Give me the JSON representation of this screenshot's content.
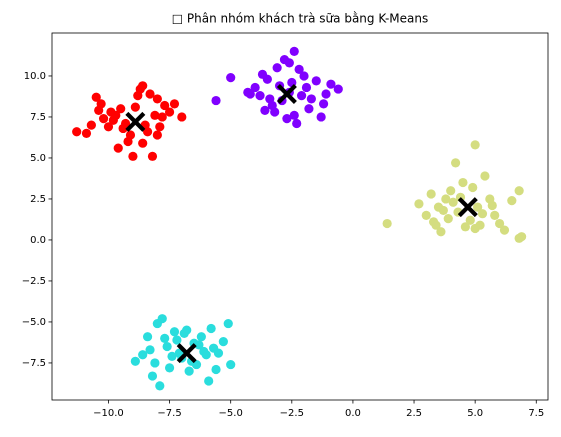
{
  "chart_data": {
    "type": "scatter",
    "title": "□ Phân nhóm khách trà sữa bằng K-Means",
    "xlim": [
      -12.31,
      7.98
    ],
    "ylim": [
      -9.76,
      12.62
    ],
    "xticks": [
      {
        "value": -10,
        "label": "−10.0"
      },
      {
        "value": -7.5,
        "label": "−7.5"
      },
      {
        "value": -5,
        "label": "−5.0"
      },
      {
        "value": -2.5,
        "label": "−2.5"
      },
      {
        "value": 0,
        "label": "0.0"
      },
      2.5,
      {
        "value": 5,
        "label": "5.0"
      },
      7.5
    ],
    "yticks": [
      {
        "value": -7.5,
        "label": "−7.5"
      },
      {
        "value": -5,
        "label": "−5.0"
      },
      {
        "value": -2.5,
        "label": "−2.5"
      },
      {
        "value": 0,
        "label": "0.0"
      },
      2.5,
      {
        "value": 5,
        "label": "5.0"
      },
      7.5,
      {
        "value": 10,
        "label": "10.0"
      }
    ],
    "grid": false,
    "series": [
      {
        "color": "#ff0000",
        "marker": "o",
        "x": [
          -11.3,
          -10.9,
          -10.7,
          -10.5,
          -10.4,
          -10.2,
          -10.0,
          -9.8,
          -9.6,
          -9.5,
          -9.3,
          -9.2,
          -9.0,
          -8.8,
          -8.7,
          -8.6,
          -8.4,
          -8.3,
          -8.2,
          -8.1,
          -8.0,
          -7.8,
          -7.7,
          -7.5,
          -7.3,
          -7.0,
          -9.9,
          -9.1,
          -8.5,
          -8.9,
          -9.4,
          -8.0,
          -7.9,
          -8.6,
          -10.3,
          -9.7
        ],
        "y": [
          6.6,
          6.5,
          7.0,
          8.7,
          7.9,
          7.4,
          6.9,
          7.3,
          5.6,
          8.0,
          7.1,
          6.0,
          5.1,
          8.8,
          9.2,
          9.4,
          6.6,
          8.9,
          5.1,
          7.6,
          6.4,
          7.5,
          8.2,
          7.8,
          8.3,
          7.5,
          7.8,
          6.4,
          7.0,
          8.1,
          6.8,
          8.6,
          6.9,
          5.9,
          8.3,
          7.6
        ]
      },
      {
        "color": "#8000ff",
        "marker": "o",
        "x": [
          -5.0,
          -5.6,
          -4.3,
          -4.0,
          -3.8,
          -3.6,
          -3.5,
          -3.3,
          -3.1,
          -3.0,
          -2.9,
          -2.8,
          -2.6,
          -2.5,
          -2.4,
          -2.3,
          -2.1,
          -2.0,
          -1.9,
          -1.7,
          -1.5,
          -1.3,
          -1.1,
          -0.9,
          -0.6,
          -3.7,
          -3.2,
          -2.7,
          -2.2,
          -1.8,
          -2.6,
          -3.4,
          -2.4,
          -1.2,
          -4.2
        ],
        "y": [
          9.9,
          8.5,
          9.0,
          9.3,
          8.8,
          7.9,
          9.8,
          8.2,
          10.5,
          9.4,
          8.5,
          11.0,
          10.8,
          9.6,
          11.5,
          7.1,
          8.8,
          10.0,
          9.3,
          8.6,
          9.7,
          7.5,
          8.9,
          9.5,
          9.2,
          10.1,
          7.8,
          7.4,
          10.4,
          8.0,
          9.0,
          8.6,
          7.6,
          8.3,
          8.9
        ]
      },
      {
        "color": "#d4dd80",
        "marker": "o",
        "x": [
          1.4,
          2.7,
          3.0,
          3.2,
          3.4,
          3.5,
          3.6,
          3.8,
          3.9,
          4.0,
          4.2,
          4.3,
          4.4,
          4.6,
          4.8,
          4.9,
          5.0,
          5.1,
          5.2,
          5.4,
          5.6,
          5.8,
          6.0,
          6.2,
          6.5,
          6.8,
          6.8,
          6.9,
          4.5,
          3.7,
          5.3,
          4.1,
          5.0,
          5.7,
          3.3
        ],
        "y": [
          1.0,
          2.2,
          1.5,
          2.8,
          0.9,
          2.0,
          0.5,
          2.5,
          1.3,
          3.0,
          4.7,
          1.7,
          2.6,
          0.8,
          1.2,
          3.2,
          5.8,
          2.0,
          0.9,
          3.9,
          2.5,
          1.5,
          1.0,
          0.6,
          2.4,
          3.0,
          0.1,
          0.2,
          3.5,
          1.8,
          1.6,
          2.3,
          0.7,
          2.1,
          1.1
        ]
      },
      {
        "color": "#2adddd",
        "marker": "o",
        "x": [
          -8.9,
          -8.6,
          -8.4,
          -8.2,
          -8.0,
          -7.8,
          -7.6,
          -7.5,
          -7.3,
          -7.1,
          -7.0,
          -6.9,
          -6.7,
          -6.5,
          -6.4,
          -6.2,
          -6.0,
          -5.9,
          -5.7,
          -5.5,
          -5.3,
          -5.1,
          -5.0,
          -8.3,
          -7.9,
          -7.2,
          -6.6,
          -6.1,
          -5.8,
          -7.4,
          -6.3,
          -8.1,
          -6.8,
          -5.6,
          -7.7
        ],
        "y": [
          -7.4,
          -7.0,
          -5.9,
          -8.3,
          -5.1,
          -4.8,
          -6.5,
          -7.8,
          -5.6,
          -6.9,
          -7.2,
          -5.7,
          -8.0,
          -6.3,
          -7.6,
          -5.9,
          -7.0,
          -8.6,
          -6.6,
          -6.9,
          -6.2,
          -5.1,
          -7.6,
          -6.7,
          -8.9,
          -6.1,
          -7.4,
          -6.8,
          -5.4,
          -7.1,
          -6.4,
          -7.5,
          -5.5,
          -7.9,
          -6.0
        ]
      },
      {
        "color": "#000000",
        "marker": "X",
        "x": [
          -8.9,
          -2.7,
          4.7,
          -6.8
        ],
        "y": [
          7.2,
          8.9,
          2.0,
          -6.9
        ]
      }
    ]
  }
}
